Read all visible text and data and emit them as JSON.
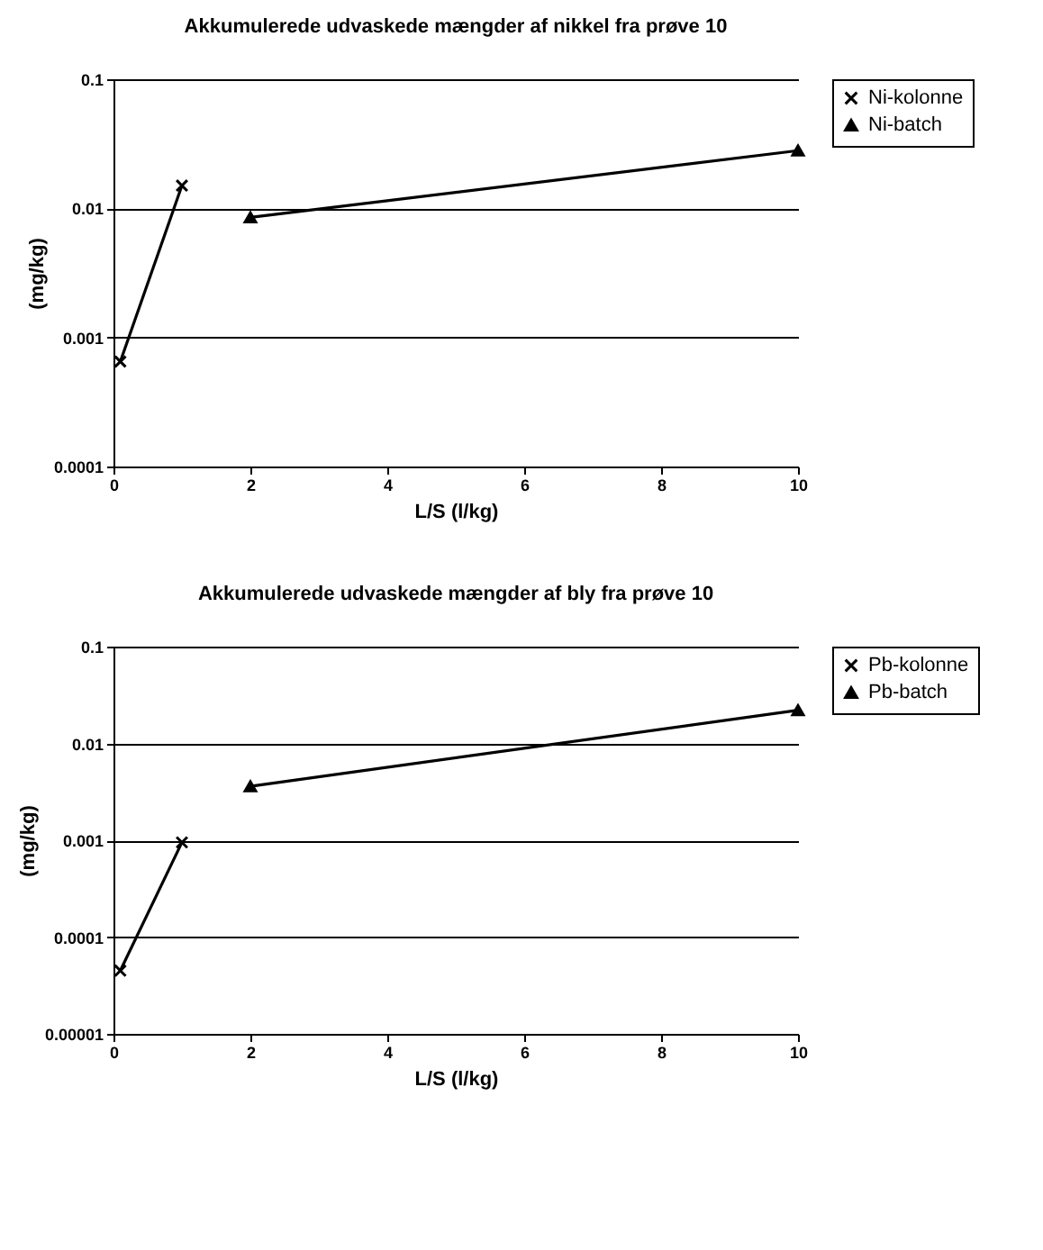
{
  "chart_data": [
    {
      "type": "line",
      "title": "Akkumulerede udvaskede mængder af nikkel fra prøve 10",
      "xlabel": "L/S (l/kg)",
      "ylabel": "(mg/kg)",
      "log": "y",
      "grid": "y",
      "legend": "right",
      "xlim": [
        0,
        10
      ],
      "xticks": [
        0,
        2,
        4,
        6,
        8,
        10
      ],
      "ylim": [
        0.0001,
        0.1
      ],
      "yticks": [
        0.0001,
        0.001,
        0.01,
        0.1
      ],
      "series": [
        {
          "name": "Ni-kolonne",
          "color": "#000000",
          "marker": "cross",
          "x": [
            0.1,
            1
          ],
          "values": [
            0.00065,
            0.015
          ]
        },
        {
          "name": "Ni-batch",
          "color": "#000000",
          "marker": "triangle",
          "x": [
            2,
            10
          ],
          "values": [
            0.0085,
            0.028
          ]
        }
      ]
    },
    {
      "type": "line",
      "title": "Akkumulerede udvaskede mængder af bly fra prøve 10",
      "xlabel": "L/S (l/kg)",
      "ylabel": "(mg/kg)",
      "log": "y",
      "grid": "y",
      "legend": "right",
      "xlim": [
        0,
        10
      ],
      "xticks": [
        0,
        2,
        4,
        6,
        8,
        10
      ],
      "ylim": [
        1e-05,
        0.1
      ],
      "yticks": [
        {
          "value": 1e-05,
          "label": "0.00001"
        },
        0.0001,
        0.001,
        0.01,
        0.1
      ],
      "series": [
        {
          "name": "Pb-kolonne",
          "color": "#000000",
          "marker": "cross",
          "x": [
            0.1,
            1
          ],
          "values": [
            4.5e-05,
            0.00095
          ]
        },
        {
          "name": "Pb-batch",
          "color": "#000000",
          "marker": "triangle",
          "x": [
            2,
            10
          ],
          "values": [
            0.0036,
            0.022
          ]
        }
      ]
    }
  ]
}
